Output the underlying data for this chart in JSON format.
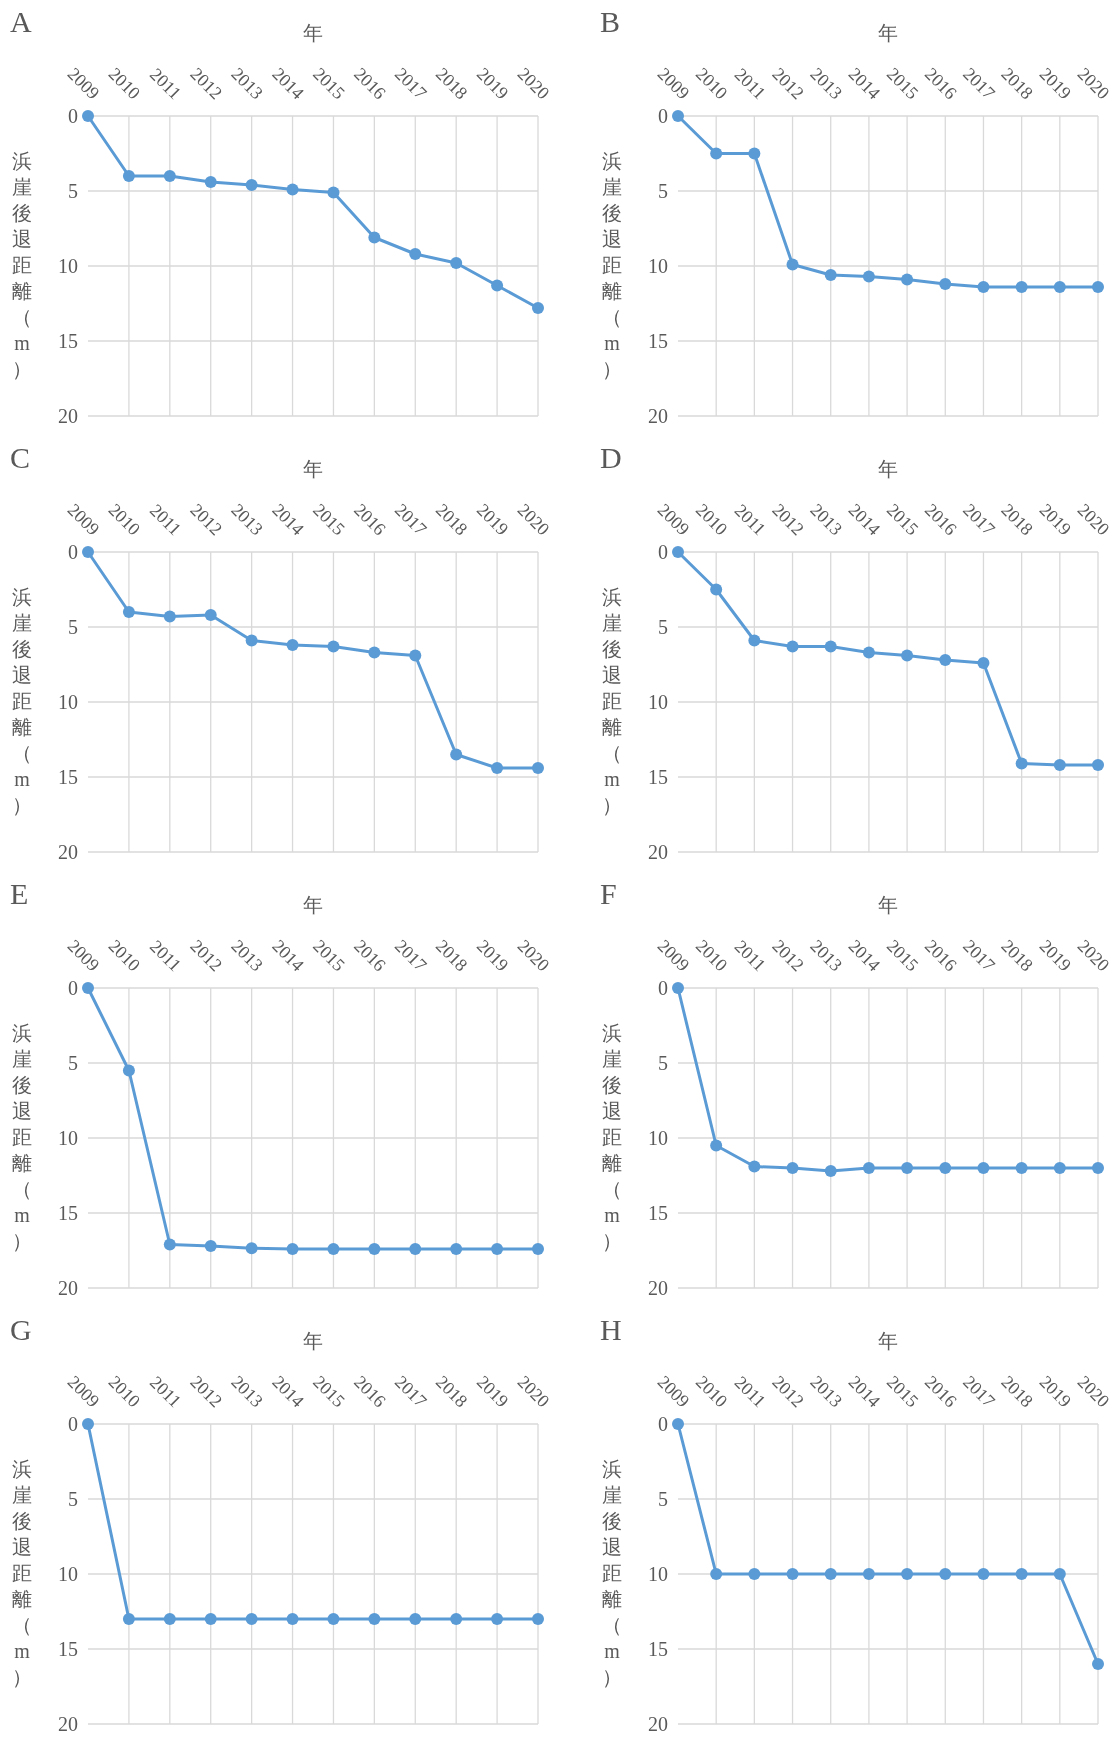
{
  "chart_data": [
    {
      "type": "line",
      "title": "A",
      "xlabel": "年",
      "ylabel": "浜崖後退距離（m）",
      "categories": [
        "2009",
        "2010",
        "2011",
        "2012",
        "2013",
        "2014",
        "2015",
        "2016",
        "2017",
        "2018",
        "2019",
        "2020"
      ],
      "series": [
        {
          "color": "#5b9bd5",
          "values": [
            0,
            4,
            4,
            4.4,
            4.6,
            4.9,
            5.1,
            8.1,
            9.2,
            9.8,
            11.3,
            12.8
          ]
        }
      ],
      "ylim": [
        20,
        0
      ],
      "yticks": [
        0,
        5,
        10,
        15,
        20
      ],
      "grid": true,
      "marker": "circle"
    },
    {
      "type": "line",
      "title": "B",
      "xlabel": "年",
      "ylabel": "浜崖後退距離（m）",
      "categories": [
        "2009",
        "2010",
        "2011",
        "2012",
        "2013",
        "2014",
        "2015",
        "2016",
        "2017",
        "2018",
        "2019",
        "2020"
      ],
      "series": [
        {
          "color": "#5b9bd5",
          "values": [
            0,
            2.5,
            2.5,
            9.9,
            10.6,
            10.7,
            10.9,
            11.2,
            11.4,
            11.4,
            11.4,
            11.4
          ]
        }
      ],
      "ylim": [
        20,
        0
      ],
      "yticks": [
        0,
        5,
        10,
        15,
        20
      ],
      "grid": true,
      "marker": "circle"
    },
    {
      "type": "line",
      "title": "C",
      "xlabel": "年",
      "ylabel": "浜崖後退距離（m）",
      "categories": [
        "2009",
        "2010",
        "2011",
        "2012",
        "2013",
        "2014",
        "2015",
        "2016",
        "2017",
        "2018",
        "2019",
        "2020"
      ],
      "series": [
        {
          "color": "#5b9bd5",
          "values": [
            0,
            4,
            4.3,
            4.2,
            5.9,
            6.2,
            6.3,
            6.7,
            6.9,
            13.5,
            14.4,
            14.4
          ]
        }
      ],
      "ylim": [
        20,
        0
      ],
      "yticks": [
        0,
        5,
        10,
        15,
        20
      ],
      "grid": true,
      "marker": "circle"
    },
    {
      "type": "line",
      "title": "D",
      "xlabel": "年",
      "ylabel": "浜崖後退距離（m）",
      "categories": [
        "2009",
        "2010",
        "2011",
        "2012",
        "2013",
        "2014",
        "2015",
        "2016",
        "2017",
        "2018",
        "2019",
        "2020"
      ],
      "series": [
        {
          "color": "#5b9bd5",
          "values": [
            0,
            2.5,
            5.9,
            6.3,
            6.3,
            6.7,
            6.9,
            7.2,
            7.4,
            14.1,
            14.2,
            14.2
          ]
        }
      ],
      "ylim": [
        20,
        0
      ],
      "yticks": [
        0,
        5,
        10,
        15,
        20
      ],
      "grid": true,
      "marker": "circle"
    },
    {
      "type": "line",
      "title": "E",
      "xlabel": "年",
      "ylabel": "浜崖後退距離（m）",
      "categories": [
        "2009",
        "2010",
        "2011",
        "2012",
        "2013",
        "2014",
        "2015",
        "2016",
        "2017",
        "2018",
        "2019",
        "2020"
      ],
      "series": [
        {
          "color": "#5b9bd5",
          "values": [
            0,
            5.5,
            17.1,
            17.2,
            17.35,
            17.4,
            17.4,
            17.4,
            17.4,
            17.4,
            17.4,
            17.4
          ]
        }
      ],
      "ylim": [
        20,
        0
      ],
      "yticks": [
        0,
        5,
        10,
        15,
        20
      ],
      "grid": true,
      "marker": "circle"
    },
    {
      "type": "line",
      "title": "F",
      "xlabel": "年",
      "ylabel": "浜崖後退距離（m）",
      "categories": [
        "2009",
        "2010",
        "2011",
        "2012",
        "2013",
        "2014",
        "2015",
        "2016",
        "2017",
        "2018",
        "2019",
        "2020"
      ],
      "series": [
        {
          "color": "#5b9bd5",
          "values": [
            0,
            10.5,
            11.9,
            12,
            12.2,
            12,
            12,
            12,
            12,
            12,
            12,
            12
          ]
        }
      ],
      "ylim": [
        20,
        0
      ],
      "yticks": [
        0,
        5,
        10,
        15,
        20
      ],
      "grid": true,
      "marker": "circle"
    },
    {
      "type": "line",
      "title": "G",
      "xlabel": "年",
      "ylabel": "浜崖後退距離（m）",
      "categories": [
        "2009",
        "2010",
        "2011",
        "2012",
        "2013",
        "2014",
        "2015",
        "2016",
        "2017",
        "2018",
        "2019",
        "2020"
      ],
      "series": [
        {
          "color": "#5b9bd5",
          "values": [
            0,
            13,
            13,
            13,
            13,
            13,
            13,
            13,
            13,
            13,
            13,
            13
          ]
        }
      ],
      "ylim": [
        20,
        0
      ],
      "yticks": [
        0,
        5,
        10,
        15,
        20
      ],
      "grid": true,
      "marker": "circle"
    },
    {
      "type": "line",
      "title": "H",
      "xlabel": "年",
      "ylabel": "浜崖後退距離（m）",
      "categories": [
        "2009",
        "2010",
        "2011",
        "2012",
        "2013",
        "2014",
        "2015",
        "2016",
        "2017",
        "2018",
        "2019",
        "2020"
      ],
      "series": [
        {
          "color": "#5b9bd5",
          "values": [
            0,
            10,
            10,
            10,
            10,
            10,
            10,
            10,
            10,
            10,
            10,
            16
          ]
        }
      ],
      "ylim": [
        20,
        0
      ],
      "yticks": [
        0,
        5,
        10,
        15,
        20
      ],
      "grid": true,
      "marker": "circle"
    }
  ]
}
